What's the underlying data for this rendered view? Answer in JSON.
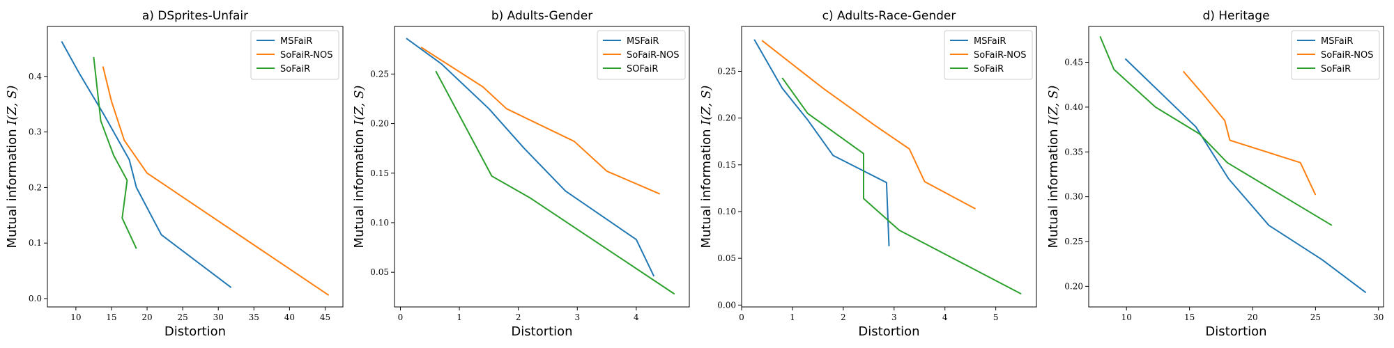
{
  "colors": {
    "MSFaiR": "#1f77b4",
    "SoFaiR-NOS": "#ff7f0e",
    "SoFaiR": "#2ca02c"
  },
  "chart_data": [
    {
      "type": "line",
      "title": "a) DSprites-Unfair",
      "xlabel": "Distortion",
      "ylabel_prefix": "Mutual information ",
      "ylabel_math": "I(Z, S)",
      "xlim": [
        6,
        47.5
      ],
      "ylim": [
        -0.015,
        0.49
      ],
      "xticks": [
        10,
        15,
        20,
        25,
        30,
        35,
        40,
        45
      ],
      "yticks": [
        0.0,
        0.1,
        0.2,
        0.3,
        0.4
      ],
      "ytick_labels": [
        "0.0",
        "0.1",
        "0.2",
        "0.3",
        "0.4"
      ],
      "legend_position": "top-right",
      "series": [
        {
          "name": "MSFaiR",
          "color": "#1f77b4",
          "points": [
            [
              8,
              0.463
            ],
            [
              10.5,
              0.405
            ],
            [
              14,
              0.33
            ],
            [
              17.5,
              0.25
            ],
            [
              18.5,
              0.2
            ],
            [
              22,
              0.115
            ],
            [
              31.8,
              0.02
            ]
          ]
        },
        {
          "name": "SoFaiR-NOS",
          "color": "#ff7f0e",
          "points": [
            [
              13.8,
              0.418
            ],
            [
              15,
              0.355
            ],
            [
              16.8,
              0.285
            ],
            [
              20,
              0.226
            ],
            [
              45.5,
              0.006
            ]
          ]
        },
        {
          "name": "SoFaiR",
          "color": "#2ca02c",
          "points": [
            [
              12.5,
              0.435
            ],
            [
              13.5,
              0.32
            ],
            [
              15.3,
              0.258
            ],
            [
              17.2,
              0.213
            ],
            [
              16.5,
              0.145
            ],
            [
              18.5,
              0.09
            ]
          ]
        }
      ]
    },
    {
      "type": "line",
      "title": "b) Adults-Gender",
      "xlabel": "Distortion",
      "ylabel_prefix": "Mutual information ",
      "ylabel_math": "I(Z, S)",
      "xlim": [
        -0.1,
        4.9
      ],
      "ylim": [
        0.015,
        0.298
      ],
      "xticks": [
        0,
        1,
        2,
        3,
        4
      ],
      "yticks": [
        0.05,
        0.1,
        0.15,
        0.2,
        0.25
      ],
      "ytick_labels": [
        "0.05",
        "0.10",
        "0.15",
        "0.20",
        "0.25"
      ],
      "legend_position": "top-right",
      "series": [
        {
          "name": "MSFaiR",
          "color": "#1f77b4",
          "points": [
            [
              0.1,
              0.286
            ],
            [
              0.7,
              0.26
            ],
            [
              1.5,
              0.215
            ],
            [
              2.1,
              0.175
            ],
            [
              2.8,
              0.132
            ],
            [
              4.0,
              0.083
            ],
            [
              4.3,
              0.046
            ]
          ]
        },
        {
          "name": "SoFaiR-NOS",
          "color": "#ff7f0e",
          "points": [
            [
              0.35,
              0.277
            ],
            [
              1.4,
              0.237
            ],
            [
              1.8,
              0.215
            ],
            [
              2.95,
              0.182
            ],
            [
              3.5,
              0.152
            ],
            [
              4.4,
              0.129
            ]
          ]
        },
        {
          "name": "SOFaiR",
          "color": "#2ca02c",
          "points": [
            [
              0.6,
              0.253
            ],
            [
              1.55,
              0.147
            ],
            [
              2.2,
              0.125
            ],
            [
              4.65,
              0.028
            ]
          ]
        }
      ]
    },
    {
      "type": "line",
      "title": "c) Adults-Race-Gender",
      "xlabel": "Distortion",
      "ylabel_prefix": "Mutual information ",
      "ylabel_math": "I(Z, S)",
      "xlim": [
        0,
        5.8
      ],
      "ylim": [
        -0.002,
        0.298
      ],
      "xticks": [
        0,
        1,
        2,
        3,
        4,
        5
      ],
      "yticks": [
        0.0,
        0.05,
        0.1,
        0.15,
        0.2,
        0.25
      ],
      "ytick_labels": [
        "0.00",
        "0.05",
        "0.10",
        "0.15",
        "0.20",
        "0.25"
      ],
      "legend_position": "top-right",
      "series": [
        {
          "name": "MSFaiR",
          "color": "#1f77b4",
          "points": [
            [
              0.25,
              0.284
            ],
            [
              0.8,
              0.232
            ],
            [
              1.3,
              0.198
            ],
            [
              1.8,
              0.16
            ],
            [
              2.85,
              0.131
            ],
            [
              2.9,
              0.063
            ]
          ]
        },
        {
          "name": "SoFaiR-NOS",
          "color": "#ff7f0e",
          "points": [
            [
              0.4,
              0.283
            ],
            [
              1.6,
              0.232
            ],
            [
              2.6,
              0.193
            ],
            [
              3.3,
              0.167
            ],
            [
              3.6,
              0.132
            ],
            [
              4.6,
              0.103
            ]
          ]
        },
        {
          "name": "SoFaiR",
          "color": "#2ca02c",
          "points": [
            [
              0.8,
              0.243
            ],
            [
              1.3,
              0.205
            ],
            [
              2.4,
              0.162
            ],
            [
              2.4,
              0.114
            ],
            [
              3.1,
              0.08
            ],
            [
              5.5,
              0.012
            ]
          ]
        }
      ]
    },
    {
      "type": "line",
      "title": "d) Heritage",
      "xlabel": "Distortion",
      "ylabel_prefix": "Mutual information ",
      "ylabel_math": "I(Z, S)",
      "xlim": [
        7,
        30.4
      ],
      "ylim": [
        0.177,
        0.49
      ],
      "xticks": [
        10,
        15,
        20,
        25,
        30
      ],
      "yticks": [
        0.2,
        0.25,
        0.3,
        0.35,
        0.4,
        0.45
      ],
      "ytick_labels": [
        "0.20",
        "0.25",
        "0.30",
        "0.35",
        "0.40",
        "0.45"
      ],
      "legend_position": "top-right",
      "series": [
        {
          "name": "MSFaiR",
          "color": "#1f77b4",
          "points": [
            [
              9.9,
              0.454
            ],
            [
              15.5,
              0.378
            ],
            [
              18.1,
              0.32
            ],
            [
              21.3,
              0.268
            ],
            [
              25.5,
              0.23
            ],
            [
              29,
              0.193
            ]
          ]
        },
        {
          "name": "SoFaiR-NOS",
          "color": "#ff7f0e",
          "points": [
            [
              14.5,
              0.44
            ],
            [
              16.1,
              0.414
            ],
            [
              17.8,
              0.385
            ],
            [
              18.2,
              0.363
            ],
            [
              23.8,
              0.338
            ],
            [
              25,
              0.302
            ]
          ]
        },
        {
          "name": "SoFaiR",
          "color": "#2ca02c",
          "points": [
            [
              7.9,
              0.479
            ],
            [
              9,
              0.442
            ],
            [
              12.3,
              0.4
            ],
            [
              15.8,
              0.37
            ],
            [
              18,
              0.338
            ],
            [
              26.3,
              0.268
            ]
          ]
        }
      ]
    }
  ]
}
